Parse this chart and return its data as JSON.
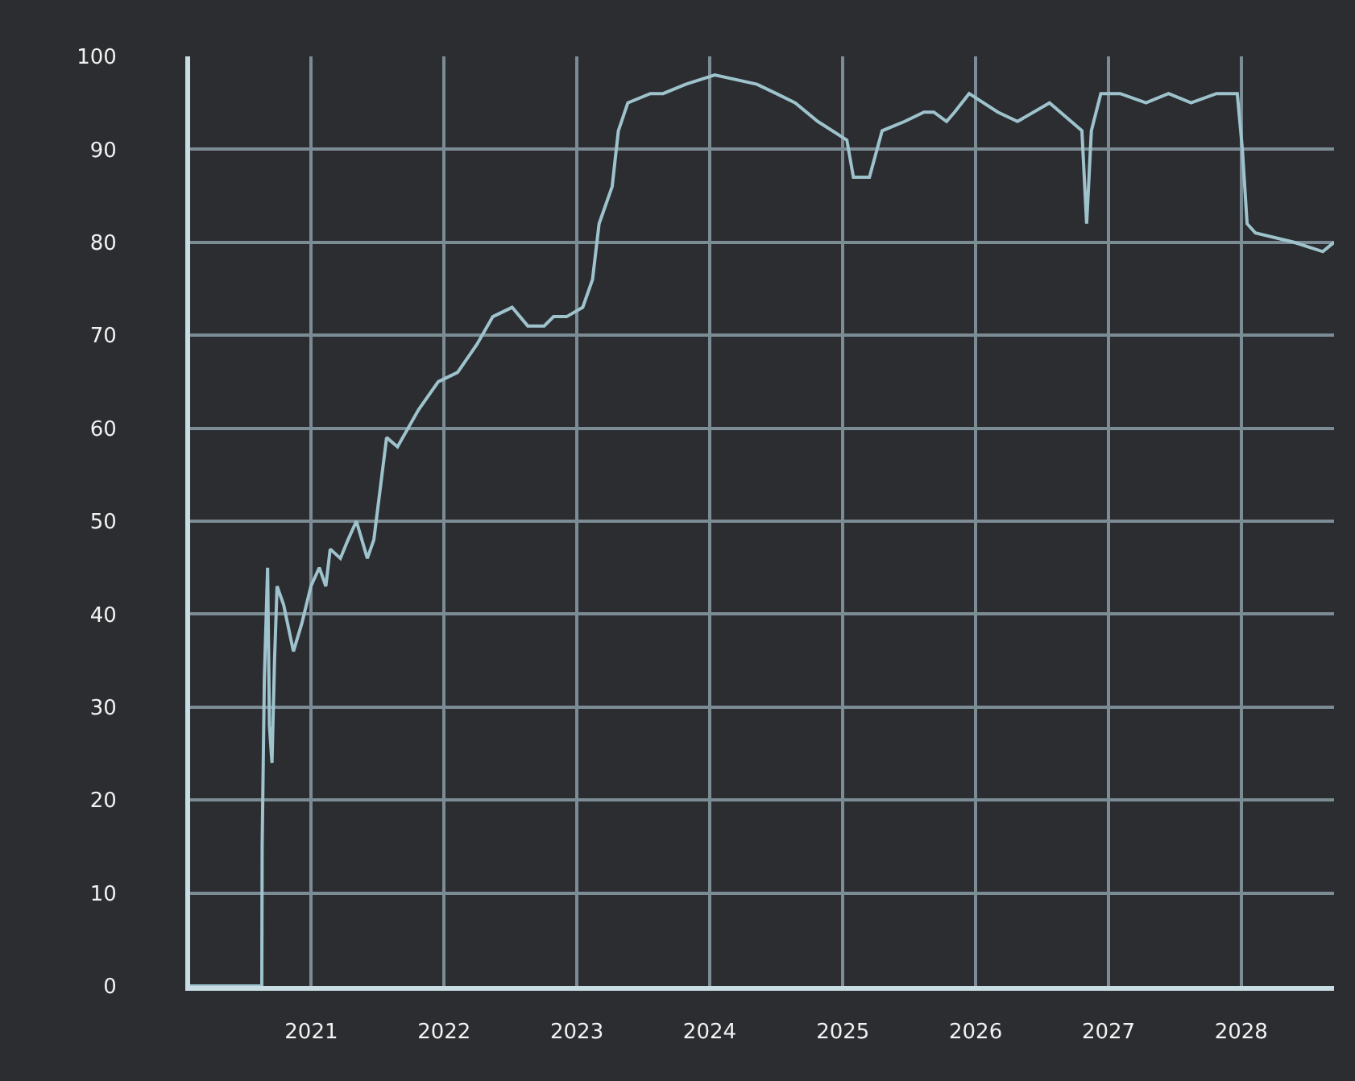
{
  "chart_data": {
    "type": "line",
    "x": [
      "2020-02-03",
      "2020-08-18",
      "2020-08-19",
      "2020-08-25",
      "2020-09-03",
      "2020-09-08",
      "2020-09-15",
      "2020-09-22",
      "2020-09-29",
      "2020-10-17",
      "2020-11-13",
      "2020-12-06",
      "2020-12-31",
      "2021-01-23",
      "2021-02-10",
      "2021-02-22",
      "2021-03-22",
      "2021-04-12",
      "2021-05-05",
      "2021-06-04",
      "2021-06-22",
      "2021-07-27",
      "2021-08-26",
      "2021-10-23",
      "2021-12-16",
      "2022-02-07",
      "2022-04-01",
      "2022-05-15",
      "2022-07-07",
      "2022-08-19",
      "2022-10-03",
      "2022-10-29",
      "2022-12-04",
      "2023-01-17",
      "2023-02-13",
      "2023-03-03",
      "2023-04-08",
      "2023-04-25",
      "2023-05-21",
      "2023-07-22",
      "2023-08-26",
      "2023-10-27",
      "2024-01-15",
      "2024-05-10",
      "2024-07-02",
      "2024-08-23",
      "2024-10-24",
      "2025-01-12",
      "2025-01-30",
      "2025-03-15",
      "2025-04-19",
      "2025-06-20",
      "2025-08-12",
      "2025-09-08",
      "2025-10-13",
      "2025-11-04",
      "2025-12-14",
      "2026-03-03",
      "2026-04-26",
      "2026-07-23",
      "2026-10-20",
      "2026-11-02",
      "2026-11-15",
      "2026-12-11",
      "2027-02-02",
      "2027-04-14",
      "2027-06-15",
      "2027-08-16",
      "2027-10-25",
      "2027-12-21",
      "2028-01-04",
      "2028-01-17",
      "2028-02-09",
      "2028-05-25",
      "2028-08-12",
      "2028-09-12"
    ],
    "series": [
      {
        "color": "#9ec3cc",
        "values": [
          0,
          0,
          15,
          33,
          45,
          28,
          24,
          35,
          43,
          41,
          36,
          39,
          43,
          45,
          43,
          47,
          46,
          48,
          50,
          46,
          48,
          59,
          58,
          62,
          65,
          66,
          69,
          72,
          73,
          71,
          71,
          72,
          72,
          73,
          76,
          82,
          86,
          92,
          95,
          96,
          96,
          97,
          98,
          97,
          96,
          95,
          93,
          91,
          87,
          87,
          92,
          93,
          94,
          94,
          93,
          94,
          96,
          94,
          93,
          95,
          92,
          82,
          92,
          96,
          96,
          95,
          96,
          95,
          96,
          96,
          90,
          82,
          81,
          80,
          79,
          80
        ]
      }
    ],
    "xlim": [
      "2020-02-03",
      "2028-09-12"
    ],
    "xticks": [
      "2021",
      "2022",
      "2023",
      "2024",
      "2025",
      "2026",
      "2027",
      "2028"
    ],
    "ylim": [
      0,
      100
    ],
    "yticks": [
      0,
      10,
      20,
      30,
      40,
      50,
      60,
      70,
      80,
      90,
      100
    ],
    "grid": true,
    "marker": "none",
    "line_style": "solid"
  }
}
